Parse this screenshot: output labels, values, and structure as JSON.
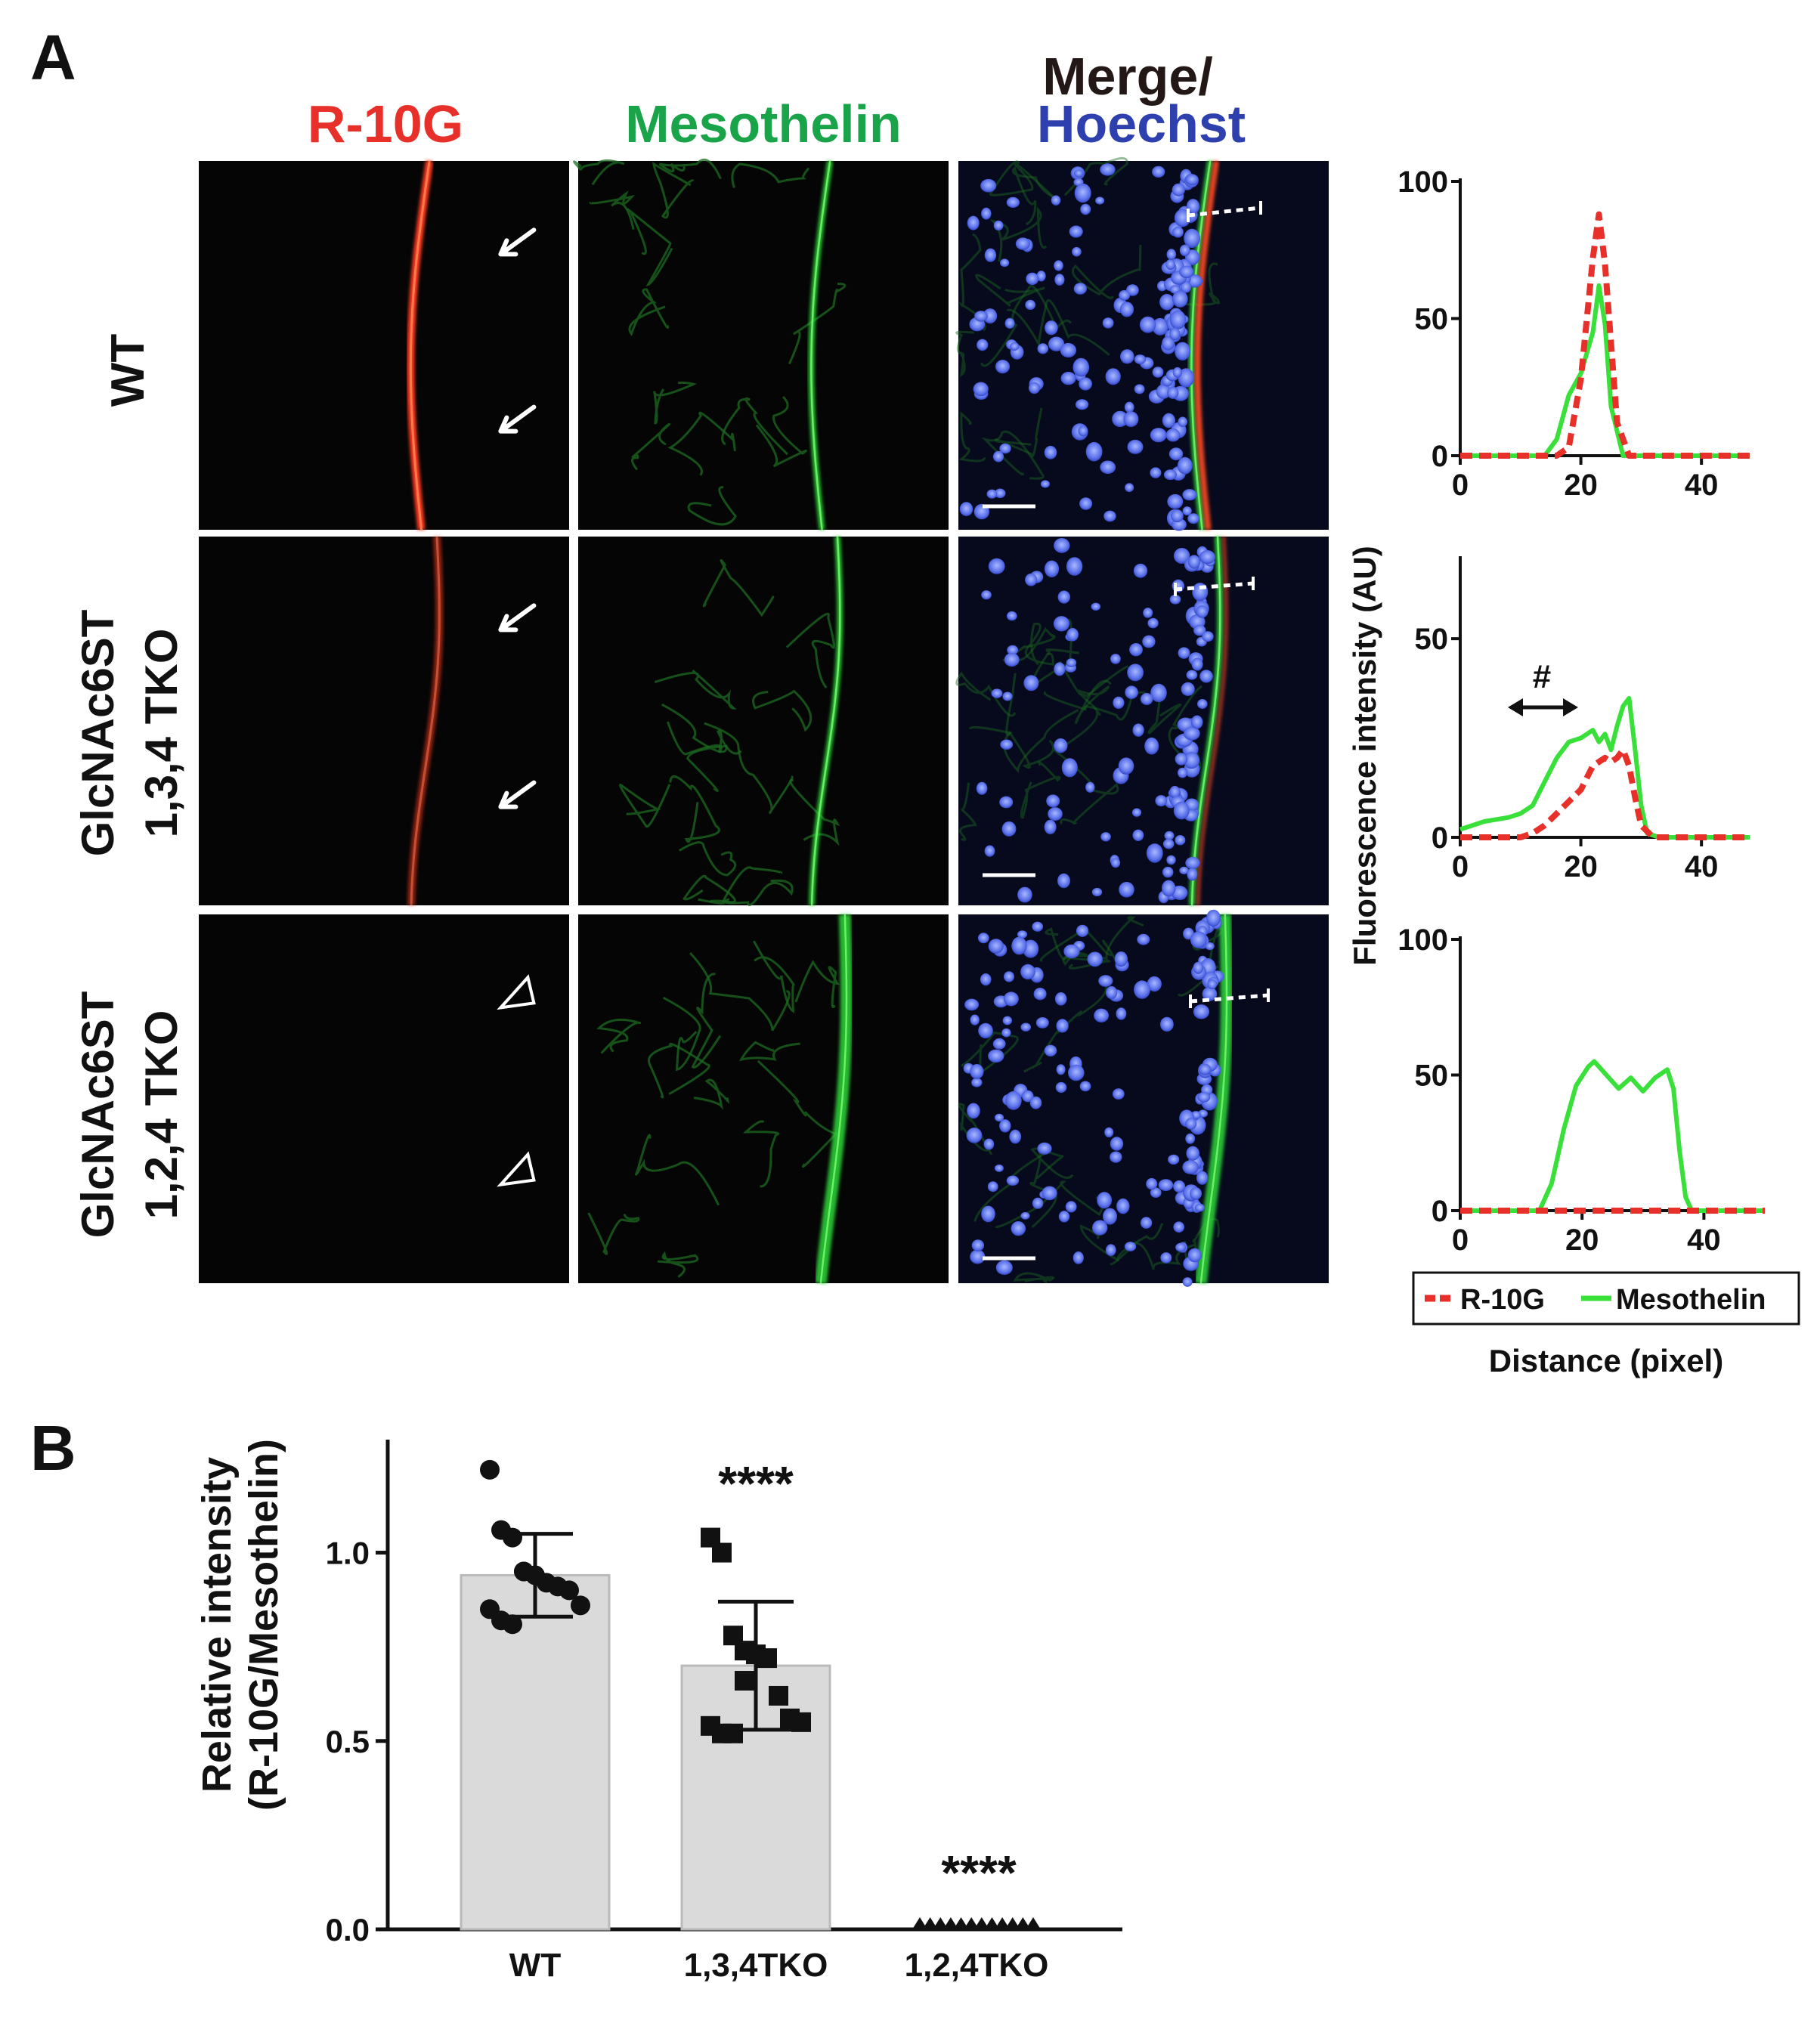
{
  "panel_A": {
    "label": "A",
    "column_headers": {
      "r10g": "R-10G",
      "mesothelin": "Mesothelin",
      "merge_line1": "Merge/",
      "merge_line2": "Hoechst"
    },
    "row_labels": [
      {
        "line1": "WT",
        "line2": ""
      },
      {
        "line1": "GlcNAc6ST",
        "line2": "1,3,4 TKO"
      },
      {
        "line1": "GlcNAc6ST",
        "line2": "1,2,4 TKO"
      }
    ],
    "annotation_hash": "#",
    "line_plot_ylabel": "Fluorescence intensity (AU)",
    "line_plot_xlabel": "Distance (pixel)",
    "legend": [
      "R-10G",
      "Mesothelin"
    ],
    "colors": {
      "r10g": "#e8302a",
      "mesothelin": "#39e03a",
      "hoechst": "#2e3fae",
      "merge": "#231815"
    }
  },
  "panel_B": {
    "label": "B",
    "significance": [
      "****",
      "****"
    ]
  },
  "chart_data": [
    {
      "type": "line",
      "title": "",
      "xlabel": "Distance (pixel)",
      "ylabel": "Fluorescence intensity (AU)",
      "xlim": [
        0,
        48
      ],
      "ylim": [
        0,
        100
      ],
      "xticks": [
        "0",
        "20",
        "40"
      ],
      "yticks": [
        "0",
        "50",
        "100"
      ],
      "series": [
        {
          "name": "R-10G",
          "style": "dashed",
          "color": "#e8302a",
          "x": [
            0,
            16,
            18,
            20,
            22,
            23,
            24,
            26,
            28,
            48
          ],
          "y": [
            0,
            0,
            3,
            28,
            72,
            88,
            70,
            12,
            0,
            0
          ]
        },
        {
          "name": "Mesothelin",
          "style": "solid",
          "color": "#39e03a",
          "x": [
            0,
            14,
            16,
            18,
            20,
            22,
            23,
            24,
            25,
            27,
            48
          ],
          "y": [
            0,
            0,
            6,
            22,
            30,
            45,
            62,
            48,
            18,
            0,
            0
          ]
        }
      ]
    },
    {
      "type": "line",
      "title": "",
      "xlabel": "Distance (pixel)",
      "ylabel": "Fluorescence intensity (AU)",
      "xlim": [
        0,
        48
      ],
      "ylim": [
        0,
        70
      ],
      "xticks": [
        "0",
        "20",
        "40"
      ],
      "yticks": [
        "0",
        "50"
      ],
      "series": [
        {
          "name": "R-10G",
          "style": "dashed",
          "color": "#e8302a",
          "x": [
            0,
            10,
            12,
            14,
            16,
            18,
            20,
            22,
            24,
            25,
            26,
            27,
            28,
            29,
            30,
            32,
            48
          ],
          "y": [
            0,
            0,
            1,
            3,
            6,
            9,
            12,
            18,
            20,
            19,
            20,
            22,
            18,
            10,
            3,
            0,
            0
          ]
        },
        {
          "name": "Mesothelin",
          "style": "solid",
          "color": "#39e03a",
          "x": [
            0,
            4,
            8,
            10,
            12,
            14,
            16,
            18,
            20,
            22,
            23,
            24,
            25,
            26,
            27,
            28,
            29,
            30,
            31,
            33,
            48
          ],
          "y": [
            2,
            4,
            5,
            6,
            8,
            14,
            20,
            24,
            25,
            27,
            24,
            26,
            22,
            28,
            33,
            35,
            22,
            8,
            1,
            0,
            0
          ]
        }
      ]
    },
    {
      "type": "line",
      "title": "",
      "xlabel": "Distance (pixel)",
      "ylabel": "Fluorescence intensity (AU)",
      "xlim": [
        0,
        50
      ],
      "ylim": [
        0,
        100
      ],
      "xticks": [
        "0",
        "20",
        "40"
      ],
      "yticks": [
        "0",
        "50",
        "100"
      ],
      "series": [
        {
          "name": "R-10G",
          "style": "dashed",
          "color": "#e8302a",
          "x": [
            0,
            50
          ],
          "y": [
            0,
            0
          ]
        },
        {
          "name": "Mesothelin",
          "style": "solid",
          "color": "#39e03a",
          "x": [
            0,
            13,
            15,
            17,
            19,
            21,
            22,
            24,
            26,
            28,
            30,
            32,
            34,
            35,
            36,
            37,
            38,
            50
          ],
          "y": [
            0,
            0,
            10,
            30,
            46,
            53,
            55,
            50,
            45,
            49,
            44,
            49,
            52,
            45,
            22,
            5,
            0,
            0
          ]
        }
      ]
    },
    {
      "type": "bar",
      "title": "",
      "categories": [
        "WT",
        "1,3,4TKO",
        "1,2,4TKO"
      ],
      "values": [
        0.94,
        0.7,
        0.0
      ],
      "error": [
        0.11,
        0.17,
        0.0
      ],
      "points": [
        [
          1.22,
          1.06,
          1.04,
          0.95,
          0.94,
          0.92,
          0.91,
          0.9,
          0.86,
          0.85,
          0.82,
          0.81,
          0.95
        ],
        [
          1.04,
          1.0,
          0.78,
          0.74,
          0.73,
          0.72,
          0.62,
          0.56,
          0.55,
          0.54,
          0.52,
          0.52,
          0.66
        ],
        [
          0,
          0,
          0,
          0,
          0,
          0,
          0,
          0,
          0,
          0,
          0,
          0
        ]
      ],
      "point_markers": [
        "circle",
        "square",
        "triangle"
      ],
      "xlabel": "",
      "ylabel": "Relative intensity\n(R-10G/Mesothelin)",
      "ylabel_line1": "Relative intensity",
      "ylabel_line2": "(R-10G/Mesothelin)",
      "ylim": [
        0,
        1.3
      ],
      "yticks": [
        "0.0",
        "0.5",
        "1.0"
      ]
    }
  ]
}
